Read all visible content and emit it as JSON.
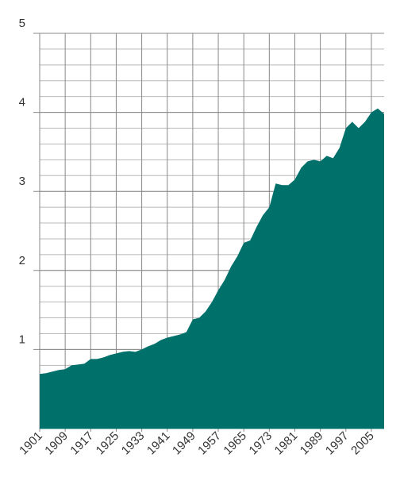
{
  "chart_data": {
    "type": "area",
    "color": "#00706b",
    "grid": true,
    "x": [
      1901,
      1903,
      1905,
      1907,
      1909,
      1911,
      1913,
      1915,
      1917,
      1919,
      1921,
      1923,
      1925,
      1927,
      1929,
      1931,
      1933,
      1935,
      1937,
      1939,
      1941,
      1943,
      1945,
      1947,
      1949,
      1951,
      1953,
      1955,
      1957,
      1959,
      1961,
      1963,
      1965,
      1967,
      1969,
      1971,
      1973,
      1975,
      1977,
      1979,
      1981,
      1983,
      1985,
      1987,
      1989,
      1991,
      1993,
      1995,
      1997,
      1999,
      2001,
      2003,
      2005,
      2007,
      2009
    ],
    "values": [
      0.69,
      0.7,
      0.72,
      0.74,
      0.75,
      0.8,
      0.81,
      0.82,
      0.88,
      0.88,
      0.9,
      0.93,
      0.95,
      0.97,
      0.98,
      0.97,
      1.0,
      1.04,
      1.07,
      1.12,
      1.15,
      1.17,
      1.19,
      1.22,
      1.38,
      1.4,
      1.48,
      1.6,
      1.75,
      1.88,
      2.05,
      2.18,
      2.35,
      2.38,
      2.55,
      2.7,
      2.8,
      3.1,
      3.08,
      3.08,
      3.15,
      3.3,
      3.38,
      3.4,
      3.38,
      3.45,
      3.42,
      3.55,
      3.8,
      3.88,
      3.8,
      3.88,
      4.0,
      4.05,
      3.98
    ],
    "xlim": [
      1901,
      2009
    ],
    "xticks": [
      1901,
      1909,
      1917,
      1925,
      1933,
      1941,
      1949,
      1957,
      1965,
      1973,
      1981,
      1989,
      1997,
      2005
    ],
    "ylim": [
      0,
      5
    ],
    "yticks": [
      1,
      2,
      3,
      4,
      5
    ]
  }
}
